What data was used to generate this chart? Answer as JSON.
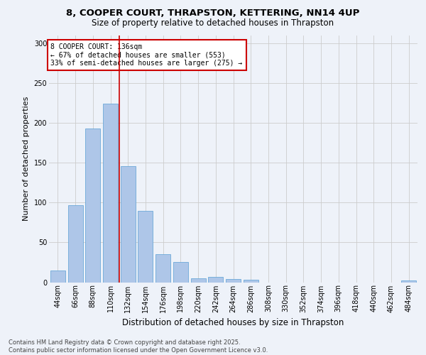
{
  "title_line1": "8, COOPER COURT, THRAPSTON, KETTERING, NN14 4UP",
  "title_line2": "Size of property relative to detached houses in Thrapston",
  "xlabel": "Distribution of detached houses by size in Thrapston",
  "ylabel": "Number of detached properties",
  "categories": [
    "44sqm",
    "66sqm",
    "88sqm",
    "110sqm",
    "132sqm",
    "154sqm",
    "176sqm",
    "198sqm",
    "220sqm",
    "242sqm",
    "264sqm",
    "286sqm",
    "308sqm",
    "330sqm",
    "352sqm",
    "374sqm",
    "396sqm",
    "418sqm",
    "440sqm",
    "462sqm",
    "484sqm"
  ],
  "values": [
    15,
    97,
    193,
    224,
    146,
    90,
    35,
    25,
    5,
    7,
    4,
    3,
    0,
    0,
    0,
    0,
    0,
    0,
    0,
    0,
    2
  ],
  "bar_color": "#aec6e8",
  "bar_edge_color": "#5a9fd4",
  "grid_color": "#cccccc",
  "background_color": "#eef2f9",
  "vline_x": 3.5,
  "vline_color": "#cc0000",
  "annotation_text": "8 COOPER COURT: 136sqm\n← 67% of detached houses are smaller (553)\n33% of semi-detached houses are larger (275) →",
  "annotation_box_color": "#cc0000",
  "footer_text": "Contains HM Land Registry data © Crown copyright and database right 2025.\nContains public sector information licensed under the Open Government Licence v3.0.",
  "ylim": [
    0,
    310
  ],
  "yticks": [
    0,
    50,
    100,
    150,
    200,
    250,
    300
  ],
  "title1_fontsize": 9.5,
  "title2_fontsize": 8.5,
  "ylabel_fontsize": 8,
  "xlabel_fontsize": 8.5,
  "tick_fontsize": 7,
  "annot_fontsize": 7,
  "footer_fontsize": 6
}
